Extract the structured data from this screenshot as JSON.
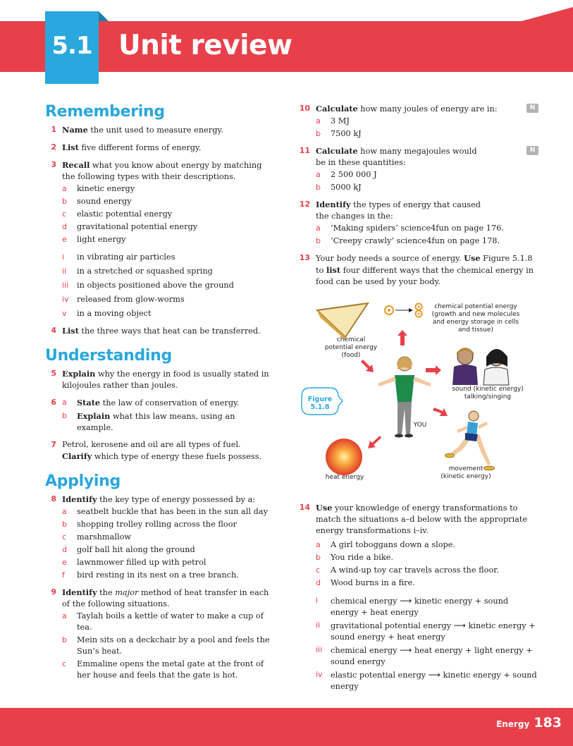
{
  "header": {
    "unit_number": "5.1",
    "title": "Unit review"
  },
  "footer": {
    "subject": "Energy",
    "page_number": "183"
  },
  "sections": {
    "remembering": "Remembering",
    "understanding": "Understanding",
    "applying": "Applying"
  },
  "q1": {
    "num": "1",
    "verb": "Name",
    "text": " the unit used to measure energy."
  },
  "q2": {
    "num": "2",
    "verb": "List",
    "text": " five different forms of energy."
  },
  "q3": {
    "num": "3",
    "verb": "Recall",
    "text": " what you know about energy by matching the following types with their descriptions.",
    "types": [
      {
        "l": "a",
        "t": "kinetic energy"
      },
      {
        "l": "b",
        "t": "sound energy"
      },
      {
        "l": "c",
        "t": "elastic potential energy"
      },
      {
        "l": "d",
        "t": "gravitational potential energy"
      },
      {
        "l": "e",
        "t": "light energy"
      }
    ],
    "descriptions": [
      {
        "l": "i",
        "t": "in vibrating air particles"
      },
      {
        "l": "ii",
        "t": "in a stretched or squashed spring"
      },
      {
        "l": "iii",
        "t": "in objects positioned above the ground"
      },
      {
        "l": "iv",
        "t": "released from glow-worms"
      },
      {
        "l": "v",
        "t": "in a moving object"
      }
    ]
  },
  "q4": {
    "num": "4",
    "verb": "List",
    "text": " the three ways that heat can be transferred."
  },
  "q5": {
    "num": "5",
    "verb": "Explain",
    "text": " why the energy in food is usually stated in kilojoules rather than joules."
  },
  "q6": {
    "num": "6",
    "a": {
      "l": "a",
      "verb": "State",
      "text": " the law of conservation of energy."
    },
    "b": {
      "l": "b",
      "verb": "Explain",
      "text": " what this law means, using an example."
    }
  },
  "q7": {
    "num": "7",
    "pre": "Petrol, kerosene and oil are all types of fuel. ",
    "verb": "Clarify",
    "text": " which type of energy these fuels possess."
  },
  "q8": {
    "num": "8",
    "verb": "Identify",
    "text": " the key type of energy possessed by a:",
    "items": [
      {
        "l": "a",
        "t": "seatbelt buckle that has been in the sun all day"
      },
      {
        "l": "b",
        "t": "shopping trolley rolling across the floor"
      },
      {
        "l": "c",
        "t": "marshmallow"
      },
      {
        "l": "d",
        "t": "golf ball hit along the ground"
      },
      {
        "l": "e",
        "t": "lawnmower filled up with petrol"
      },
      {
        "l": "f",
        "t": "bird resting in its nest on a tree branch."
      }
    ]
  },
  "q9": {
    "num": "9",
    "verb": "Identify",
    "text_pre": " the ",
    "text_em": "major",
    "text_post": " method of heat transfer in each of the following situations.",
    "items": [
      {
        "l": "a",
        "t": "Taylah boils a kettle of water to make a cup of tea."
      },
      {
        "l": "b",
        "t": "Mein sits on a deckchair by a pool and feels the Sun’s heat."
      },
      {
        "l": "c",
        "t": "Emmaline opens the metal gate at the front of her house and feels that the gate is hot."
      }
    ]
  },
  "q10": {
    "num": "10",
    "verb": "Calculate",
    "text": " how many joules of energy are in:",
    "badge": "N",
    "items": [
      {
        "l": "a",
        "t": "3 MJ"
      },
      {
        "l": "b",
        "t": "7500 kJ"
      }
    ]
  },
  "q11": {
    "num": "11",
    "verb": "Calculate",
    "text": " how many megajoules would be in these quantities:",
    "badge": "N",
    "items": [
      {
        "l": "a",
        "t": "2 500 000 J"
      },
      {
        "l": "b",
        "t": "5000 kJ"
      }
    ]
  },
  "q12": {
    "num": "12",
    "verb": "Identify",
    "text": " the types of energy that caused the changes in the:",
    "items": [
      {
        "l": "a",
        "t": "‘Making spiders’ science4fun on page 176."
      },
      {
        "l": "b",
        "t": "‘Creepy crawly’ science4fun on page 178."
      }
    ]
  },
  "q13": {
    "num": "13",
    "pre": "Your body needs a source of energy. ",
    "verb": "Use",
    "mid": " Figure 5.1.8 to ",
    "verb2": "list",
    "text": " four different ways that the chemical energy in food can be used by your body."
  },
  "figure": {
    "tag_line1": "Figure",
    "tag_line2": "5.1.8",
    "food_label": "chemical\npotential energy\n(food)",
    "cells_label": "chemical potential energy\n(growth and new molecules\nand energy storage in cells\nand tissue)",
    "sound_label": "sound (kinetic energy)\ntalking/singing",
    "you_label": "YOU",
    "heat_label": "heat energy",
    "movement_label": "movement\n(kinetic energy)"
  },
  "q14": {
    "num": "14",
    "verb": "Use",
    "text": " your knowledge of energy transformations to match the situations a–d below with the appropriate energy transformations i–iv.",
    "situations": [
      {
        "l": "a",
        "t": "A girl toboggans down a slope."
      },
      {
        "l": "b",
        "t": "You ride a bike."
      },
      {
        "l": "c",
        "t": "A wind-up toy car travels across the floor."
      },
      {
        "l": "d",
        "t": "Wood burns in a fire."
      }
    ],
    "transformations": [
      {
        "l": "i",
        "from": "chemical energy",
        "to": "kinetic energy + sound energy + heat energy"
      },
      {
        "l": "ii",
        "from": "gravitational potential energy",
        "to": "kinetic energy + sound energy + heat energy"
      },
      {
        "l": "iii",
        "from": "chemical energy",
        "to": "heat energy + light energy + sound energy"
      },
      {
        "l": "iv",
        "from": "elastic potential energy",
        "to": "kinetic energy + sound energy"
      }
    ]
  }
}
